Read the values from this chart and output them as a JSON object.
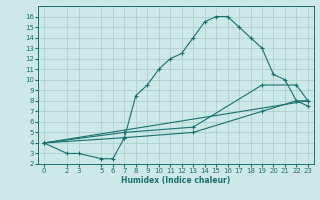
{
  "xlabel": "Humidex (Indice chaleur)",
  "bg_color": "#cce8e8",
  "grid_color": "#aacccc",
  "line_color": "#1a7070",
  "xlim": [
    -0.5,
    23.5
  ],
  "ylim": [
    2,
    17
  ],
  "xticks": [
    0,
    2,
    3,
    5,
    6,
    7,
    8,
    9,
    10,
    11,
    12,
    13,
    14,
    15,
    16,
    17,
    18,
    19,
    20,
    21,
    22,
    23
  ],
  "yticks": [
    2,
    3,
    4,
    5,
    6,
    7,
    8,
    9,
    10,
    11,
    12,
    13,
    14,
    15,
    16
  ],
  "line1_x": [
    0,
    2,
    3,
    5,
    6,
    7,
    8,
    9,
    10,
    11,
    12,
    13,
    14,
    15,
    16,
    17,
    18,
    19,
    20,
    21,
    22,
    23
  ],
  "line1_y": [
    4,
    3,
    3,
    2.5,
    2.5,
    4.5,
    8.5,
    9.5,
    11,
    12,
    12.5,
    14,
    15.5,
    16,
    16,
    15,
    14,
    13,
    10.5,
    10,
    8,
    7.5
  ],
  "line2_x": [
    0,
    7,
    13,
    19,
    22,
    23
  ],
  "line2_y": [
    4,
    4.5,
    5,
    7,
    8,
    8
  ],
  "line3_x": [
    0,
    7,
    13,
    19,
    22,
    23
  ],
  "line3_y": [
    4,
    5,
    5.5,
    9.5,
    9.5,
    8
  ],
  "line4_x": [
    0,
    23
  ],
  "line4_y": [
    4,
    8
  ]
}
